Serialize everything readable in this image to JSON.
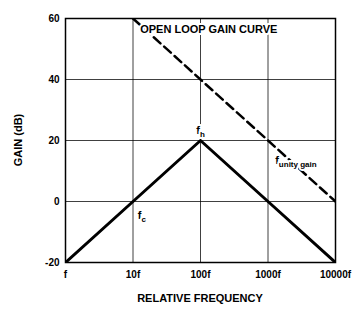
{
  "chart_data": {
    "type": "line",
    "x": [
      1,
      10,
      100,
      1000,
      10000
    ],
    "series": [
      {
        "color": "#000000",
        "line_style": "solid",
        "values": [
          -20,
          0,
          20,
          0,
          -20
        ]
      },
      {
        "color": "#000000",
        "line_style": "dashed",
        "values": [
          null,
          60,
          40,
          20,
          0
        ]
      }
    ],
    "xlabel": "RELATIVE FREQUENCY",
    "ylabel": "GAIN (dB)",
    "log": "x",
    "xlim": [
      1,
      10000
    ],
    "ylim": [
      -20,
      60
    ],
    "xticks": [
      {
        "value": 1,
        "label": "f"
      },
      {
        "value": 10,
        "label": "10f"
      },
      {
        "value": 100,
        "label": "100f"
      },
      {
        "value": 1000,
        "label": "1000f"
      },
      {
        "value": 10000,
        "label": "10000f"
      }
    ],
    "yticks": [
      -20,
      0,
      20,
      40,
      60
    ],
    "grid": true,
    "annotations": [
      {
        "text": "OPEN LOOP GAIN CURVE",
        "x": 13,
        "y": 56
      },
      {
        "text": "f",
        "sub": "c",
        "x": 12,
        "y": -5
      },
      {
        "text": "f",
        "sub": "h",
        "x": 88,
        "y": 23
      },
      {
        "text": "f",
        "sub": "unity gain",
        "x": 1300,
        "y": 13
      }
    ]
  }
}
